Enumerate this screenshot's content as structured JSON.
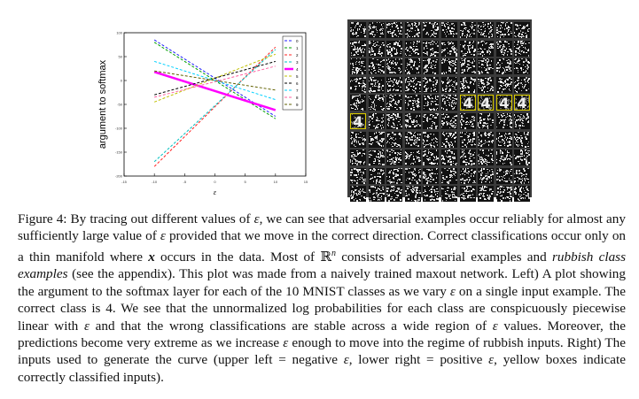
{
  "chart_data": {
    "type": "line",
    "xlabel": "ε",
    "ylabel": "argument to softmax",
    "x_ticks": [
      "-15",
      "-10",
      "-5",
      "0",
      "5",
      "10",
      "15"
    ],
    "y_ticks": [
      "100",
      "50",
      "0",
      "-50",
      "-100",
      "-150",
      "-200"
    ],
    "xlim": [
      -15,
      15
    ],
    "ylim": [
      -200,
      100
    ],
    "legend_position": "top-right",
    "series": [
      {
        "name": "0",
        "x": [
          -10,
          10
        ],
        "y": [
          85,
          -75
        ],
        "color": "#2020ff",
        "dash": "3,2",
        "width": 1
      },
      {
        "name": "1",
        "x": [
          -10,
          10
        ],
        "y": [
          80,
          -80
        ],
        "color": "#00a000",
        "dash": "3,2",
        "width": 1
      },
      {
        "name": "2",
        "x": [
          -10,
          10
        ],
        "y": [
          -180,
          70
        ],
        "color": "#ff2020",
        "dash": "3,2",
        "width": 1
      },
      {
        "name": "3",
        "x": [
          -10,
          10
        ],
        "y": [
          -170,
          65
        ],
        "color": "#00c0c0",
        "dash": "3,2",
        "width": 1
      },
      {
        "name": "4",
        "x": [
          -10,
          10
        ],
        "y": [
          18,
          -62
        ],
        "color": "#ff00ff",
        "dash": "",
        "width": 2.5
      },
      {
        "name": "5",
        "x": [
          -10,
          10
        ],
        "y": [
          -45,
          55
        ],
        "color": "#c0c000",
        "dash": "3,2",
        "width": 1
      },
      {
        "name": "6",
        "x": [
          -10,
          10
        ],
        "y": [
          -30,
          40
        ],
        "color": "#000000",
        "dash": "3,2",
        "width": 1
      },
      {
        "name": "7",
        "x": [
          -10,
          10
        ],
        "y": [
          40,
          -40
        ],
        "color": "#00d0ff",
        "dash": "3,2",
        "width": 1
      },
      {
        "name": "8",
        "x": [
          -10,
          10
        ],
        "y": [
          -35,
          30
        ],
        "color": "#ff60a0",
        "dash": "3,2",
        "width": 1
      },
      {
        "name": "9",
        "x": [
          -10,
          10
        ],
        "y": [
          20,
          -20
        ],
        "color": "#606000",
        "dash": "3,2",
        "width": 1
      }
    ]
  },
  "grid_data": {
    "rows": 10,
    "cols": 10,
    "correct_indices": [
      46,
      47,
      48,
      49,
      50
    ],
    "digit_label": "4",
    "box_color": "#d8c800"
  },
  "caption": {
    "line1": "Figure 4:  By tracing out different values of ",
    "eps": "ε",
    "line1b": ", we can see that adversarial examples occur reliably for almost any sufficiently large value of ",
    "line1c": " provided that we move in the correct direction. Correct classifications occur only on a thin manifold where ",
    "x": "x",
    "line2": " occurs in the data.  Most of ",
    "R": "ℝ",
    "n": "n",
    "line3": " consists of adversarial examples and ",
    "rubbish": "rubbish class examples",
    "line4": " (see the appendix).  This plot was made from a naively trained maxout network. Left) A plot showing the argument to the softmax layer for each of the 10 MNIST classes as we vary ",
    "line5": " on a single input example. The correct class is 4. We see that the unnormalized log probabilities for each class are conspicuously piecewise linear with ",
    "line6": " and that the wrong classifications are stable across a wide region of ",
    "line7": " values. Moreover, the predictions become very extreme as we increase ",
    "line8": " enough to move into the regime of rubbish inputs. Right) The inputs used to generate the curve (upper left = negative ",
    "line9": ", lower right = positive ",
    "line10": ", yellow boxes indicate correctly classified inputs)."
  }
}
